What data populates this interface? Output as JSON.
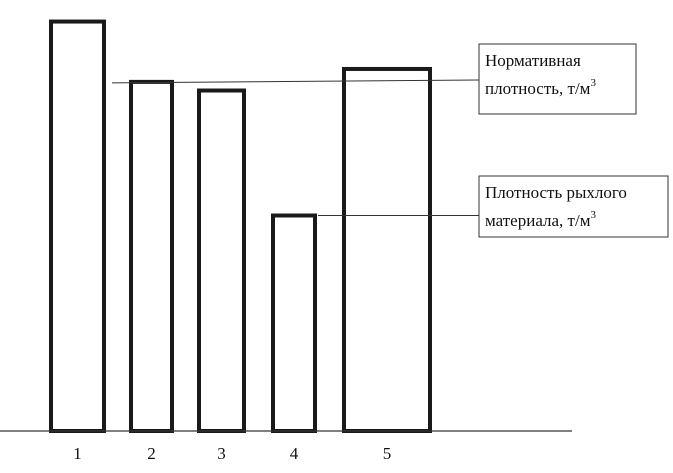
{
  "chart_data": {
    "type": "bar",
    "categories": [
      "1",
      "2",
      "3",
      "4",
      "5"
    ],
    "values": [
      0.95,
      0.81,
      0.79,
      0.5,
      0.84
    ],
    "ylim": [
      0,
      1
    ],
    "grid": false,
    "annotations": [
      {
        "line1": "Нормативная",
        "line2": "плотность, т/м",
        "sup": "3",
        "target_category": "2"
      },
      {
        "line1": "Плотность рыхлого",
        "line2": "материала, т/м",
        "sup": "3",
        "target_category": "4"
      }
    ]
  }
}
